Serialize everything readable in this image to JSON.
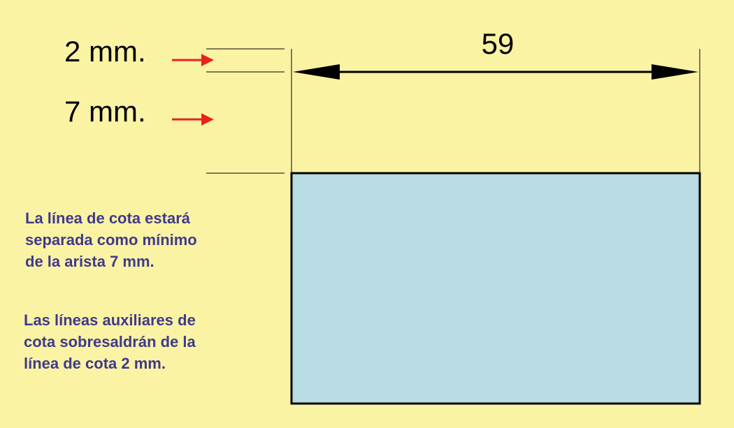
{
  "labels": {
    "overhang": "2 mm.",
    "offset": "7 mm.",
    "dimension_value": "59"
  },
  "notes": {
    "dimension_line": [
      "La línea de cota estará",
      "separada como mínimo",
      "de la arista 7 mm."
    ],
    "extension_lines": [
      "Las líneas auxiliares de",
      "cota sobresaldrán de la",
      "línea de cota 2 mm."
    ]
  },
  "colors": {
    "background": "#fbf3a4",
    "shape_fill": "#b9dce3",
    "note_text": "#3f3a8c",
    "pointer_arrow": "#e8231b",
    "lines": "#000000"
  }
}
